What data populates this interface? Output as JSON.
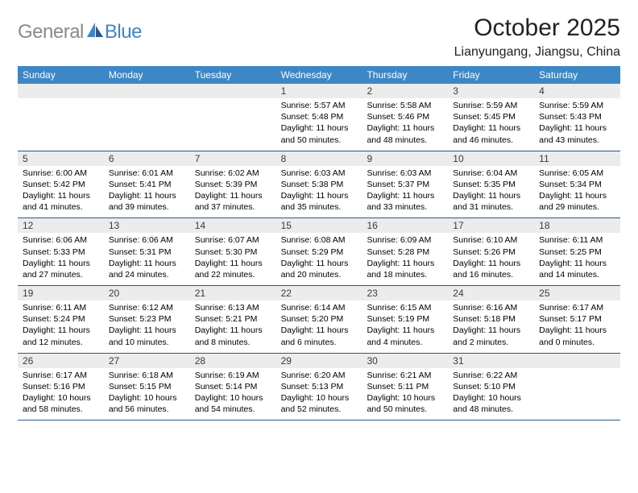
{
  "logo": {
    "text_gray": "General",
    "text_blue": "Blue"
  },
  "title": "October 2025",
  "subtitle": "Lianyungang, Jiangsu, China",
  "colors": {
    "header_bg": "#3d87c7",
    "header_text": "#ffffff",
    "daynum_bg": "#ececec",
    "divider": "#2b5a8a",
    "logo_gray": "#8a8a8a",
    "logo_blue": "#3d87c7"
  },
  "day_headers": [
    "Sunday",
    "Monday",
    "Tuesday",
    "Wednesday",
    "Thursday",
    "Friday",
    "Saturday"
  ],
  "weeks": [
    [
      {
        "num": "",
        "lines": []
      },
      {
        "num": "",
        "lines": []
      },
      {
        "num": "",
        "lines": []
      },
      {
        "num": "1",
        "lines": [
          "Sunrise: 5:57 AM",
          "Sunset: 5:48 PM",
          "Daylight: 11 hours and 50 minutes."
        ]
      },
      {
        "num": "2",
        "lines": [
          "Sunrise: 5:58 AM",
          "Sunset: 5:46 PM",
          "Daylight: 11 hours and 48 minutes."
        ]
      },
      {
        "num": "3",
        "lines": [
          "Sunrise: 5:59 AM",
          "Sunset: 5:45 PM",
          "Daylight: 11 hours and 46 minutes."
        ]
      },
      {
        "num": "4",
        "lines": [
          "Sunrise: 5:59 AM",
          "Sunset: 5:43 PM",
          "Daylight: 11 hours and 43 minutes."
        ]
      }
    ],
    [
      {
        "num": "5",
        "lines": [
          "Sunrise: 6:00 AM",
          "Sunset: 5:42 PM",
          "Daylight: 11 hours and 41 minutes."
        ]
      },
      {
        "num": "6",
        "lines": [
          "Sunrise: 6:01 AM",
          "Sunset: 5:41 PM",
          "Daylight: 11 hours and 39 minutes."
        ]
      },
      {
        "num": "7",
        "lines": [
          "Sunrise: 6:02 AM",
          "Sunset: 5:39 PM",
          "Daylight: 11 hours and 37 minutes."
        ]
      },
      {
        "num": "8",
        "lines": [
          "Sunrise: 6:03 AM",
          "Sunset: 5:38 PM",
          "Daylight: 11 hours and 35 minutes."
        ]
      },
      {
        "num": "9",
        "lines": [
          "Sunrise: 6:03 AM",
          "Sunset: 5:37 PM",
          "Daylight: 11 hours and 33 minutes."
        ]
      },
      {
        "num": "10",
        "lines": [
          "Sunrise: 6:04 AM",
          "Sunset: 5:35 PM",
          "Daylight: 11 hours and 31 minutes."
        ]
      },
      {
        "num": "11",
        "lines": [
          "Sunrise: 6:05 AM",
          "Sunset: 5:34 PM",
          "Daylight: 11 hours and 29 minutes."
        ]
      }
    ],
    [
      {
        "num": "12",
        "lines": [
          "Sunrise: 6:06 AM",
          "Sunset: 5:33 PM",
          "Daylight: 11 hours and 27 minutes."
        ]
      },
      {
        "num": "13",
        "lines": [
          "Sunrise: 6:06 AM",
          "Sunset: 5:31 PM",
          "Daylight: 11 hours and 24 minutes."
        ]
      },
      {
        "num": "14",
        "lines": [
          "Sunrise: 6:07 AM",
          "Sunset: 5:30 PM",
          "Daylight: 11 hours and 22 minutes."
        ]
      },
      {
        "num": "15",
        "lines": [
          "Sunrise: 6:08 AM",
          "Sunset: 5:29 PM",
          "Daylight: 11 hours and 20 minutes."
        ]
      },
      {
        "num": "16",
        "lines": [
          "Sunrise: 6:09 AM",
          "Sunset: 5:28 PM",
          "Daylight: 11 hours and 18 minutes."
        ]
      },
      {
        "num": "17",
        "lines": [
          "Sunrise: 6:10 AM",
          "Sunset: 5:26 PM",
          "Daylight: 11 hours and 16 minutes."
        ]
      },
      {
        "num": "18",
        "lines": [
          "Sunrise: 6:11 AM",
          "Sunset: 5:25 PM",
          "Daylight: 11 hours and 14 minutes."
        ]
      }
    ],
    [
      {
        "num": "19",
        "lines": [
          "Sunrise: 6:11 AM",
          "Sunset: 5:24 PM",
          "Daylight: 11 hours and 12 minutes."
        ]
      },
      {
        "num": "20",
        "lines": [
          "Sunrise: 6:12 AM",
          "Sunset: 5:23 PM",
          "Daylight: 11 hours and 10 minutes."
        ]
      },
      {
        "num": "21",
        "lines": [
          "Sunrise: 6:13 AM",
          "Sunset: 5:21 PM",
          "Daylight: 11 hours and 8 minutes."
        ]
      },
      {
        "num": "22",
        "lines": [
          "Sunrise: 6:14 AM",
          "Sunset: 5:20 PM",
          "Daylight: 11 hours and 6 minutes."
        ]
      },
      {
        "num": "23",
        "lines": [
          "Sunrise: 6:15 AM",
          "Sunset: 5:19 PM",
          "Daylight: 11 hours and 4 minutes."
        ]
      },
      {
        "num": "24",
        "lines": [
          "Sunrise: 6:16 AM",
          "Sunset: 5:18 PM",
          "Daylight: 11 hours and 2 minutes."
        ]
      },
      {
        "num": "25",
        "lines": [
          "Sunrise: 6:17 AM",
          "Sunset: 5:17 PM",
          "Daylight: 11 hours and 0 minutes."
        ]
      }
    ],
    [
      {
        "num": "26",
        "lines": [
          "Sunrise: 6:17 AM",
          "Sunset: 5:16 PM",
          "Daylight: 10 hours and 58 minutes."
        ]
      },
      {
        "num": "27",
        "lines": [
          "Sunrise: 6:18 AM",
          "Sunset: 5:15 PM",
          "Daylight: 10 hours and 56 minutes."
        ]
      },
      {
        "num": "28",
        "lines": [
          "Sunrise: 6:19 AM",
          "Sunset: 5:14 PM",
          "Daylight: 10 hours and 54 minutes."
        ]
      },
      {
        "num": "29",
        "lines": [
          "Sunrise: 6:20 AM",
          "Sunset: 5:13 PM",
          "Daylight: 10 hours and 52 minutes."
        ]
      },
      {
        "num": "30",
        "lines": [
          "Sunrise: 6:21 AM",
          "Sunset: 5:11 PM",
          "Daylight: 10 hours and 50 minutes."
        ]
      },
      {
        "num": "31",
        "lines": [
          "Sunrise: 6:22 AM",
          "Sunset: 5:10 PM",
          "Daylight: 10 hours and 48 minutes."
        ]
      },
      {
        "num": "",
        "lines": []
      }
    ]
  ]
}
